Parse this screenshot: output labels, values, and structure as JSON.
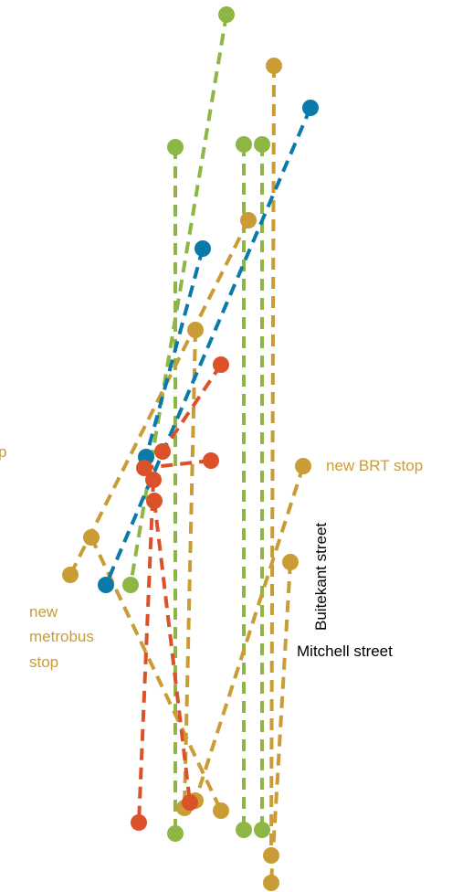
{
  "colors": {
    "green": "#8db644",
    "gold": "#c99c35",
    "blue": "#0a7aa8",
    "red": "#db5129",
    "label_text": "#000000"
  },
  "labels": {
    "bus_stop_partial": "p",
    "new_brt_stop": "new BRT stop",
    "new_metrobus_stop_line1": "new",
    "new_metrobus_stop_line2": "metrobus",
    "new_metrobus_stop_line3": "stop",
    "buitekant_street": "Buitekant street",
    "mitchell_street": "Mitchell street"
  },
  "routes": [
    {
      "color": "green",
      "from_marker": true,
      "to_marker": true
    },
    {
      "color": "green",
      "from_marker": true,
      "to_marker": true
    },
    {
      "color": "green",
      "from_marker": true,
      "to_marker": true
    },
    {
      "color": "green",
      "from_marker": true,
      "to_marker": true
    },
    {
      "color": "gold",
      "from_marker": true,
      "to_marker": true
    },
    {
      "color": "gold",
      "from_marker": true,
      "to_marker": true
    },
    {
      "color": "gold",
      "from_marker": true,
      "to_marker": true
    },
    {
      "color": "gold",
      "from_marker": true,
      "to_marker": true
    },
    {
      "color": "gold",
      "from_marker": true,
      "to_marker": true
    },
    {
      "color": "gold",
      "from_marker": true,
      "to_marker": true
    },
    {
      "color": "blue",
      "from_marker": true,
      "to_marker": true
    },
    {
      "color": "blue",
      "from_marker": true,
      "to_marker": true
    },
    {
      "color": "red",
      "from_marker": true,
      "to_marker": true
    },
    {
      "color": "red",
      "from_marker": true,
      "to_marker": true
    },
    {
      "color": "red",
      "from_marker": true,
      "to_marker": true
    },
    {
      "color": "red",
      "from_marker": true,
      "to_marker": true
    }
  ]
}
